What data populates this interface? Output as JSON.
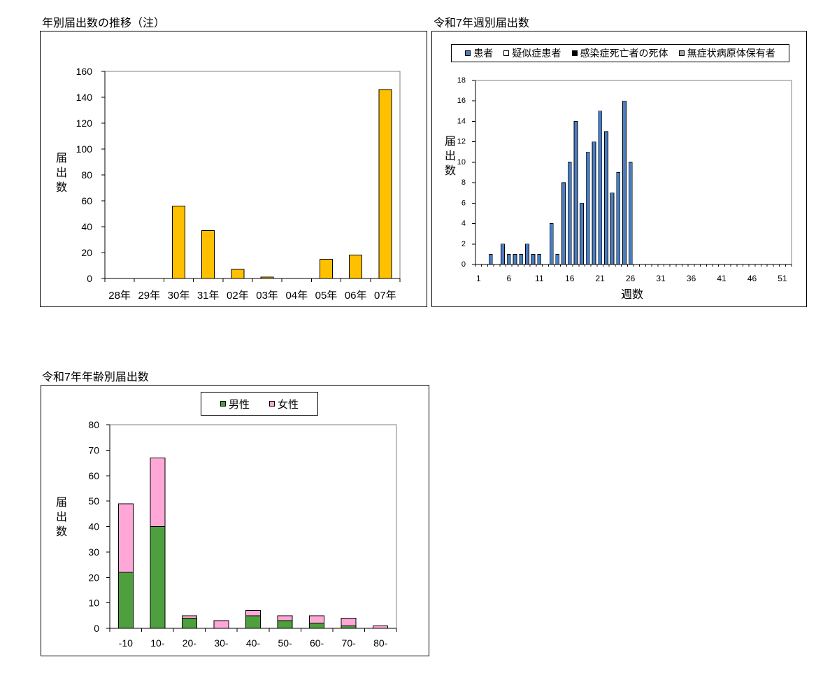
{
  "chart_data": [
    {
      "type": "bar",
      "title": "年別届出数の推移（注）",
      "ylabel": "届出数",
      "categories": [
        "28年",
        "29年",
        "30年",
        "31年",
        "02年",
        "03年",
        "04年",
        "05年",
        "06年",
        "07年"
      ],
      "values": [
        0,
        0,
        56,
        37,
        7,
        1,
        0,
        15,
        18,
        146
      ],
      "ylim": [
        0,
        160
      ],
      "yticks": [
        0,
        20,
        40,
        60,
        80,
        100,
        120,
        140,
        160
      ],
      "bar_color": "#FFC000",
      "grid": false,
      "legend": "none"
    },
    {
      "type": "bar",
      "stacked": true,
      "title": "令和7年週別届出数",
      "xlabel": "週数",
      "ylabel": "届出数",
      "x": [
        1,
        2,
        3,
        4,
        5,
        6,
        7,
        8,
        9,
        10,
        11,
        12,
        13,
        14,
        15,
        16,
        17,
        18,
        19,
        20,
        21,
        22,
        23,
        24,
        25,
        26,
        27,
        28,
        29,
        30,
        31,
        32,
        33,
        34,
        35,
        36,
        37,
        38,
        39,
        40,
        41,
        42,
        43,
        44,
        45,
        46,
        47,
        48,
        49,
        50,
        51,
        52
      ],
      "xticks": [
        1,
        6,
        11,
        16,
        21,
        26,
        31,
        36,
        41,
        46,
        51
      ],
      "ylim": [
        0,
        18
      ],
      "yticks": [
        0,
        2,
        4,
        6,
        8,
        10,
        12,
        14,
        16,
        18
      ],
      "grid": false,
      "legend": "top",
      "series": [
        {
          "name": "患者",
          "color": "#4A7DC0",
          "values": [
            0,
            0,
            1,
            0,
            2,
            1,
            1,
            1,
            2,
            1,
            1,
            0,
            4,
            1,
            8,
            10,
            14,
            6,
            11,
            12,
            15,
            13,
            7,
            9,
            16,
            10,
            0,
            0,
            0,
            0,
            0,
            0,
            0,
            0,
            0,
            0,
            0,
            0,
            0,
            0,
            0,
            0,
            0,
            0,
            0,
            0,
            0,
            0,
            0,
            0,
            0,
            0
          ]
        },
        {
          "name": "疑似症患者",
          "color": "#FFFFFF",
          "values": [
            0,
            0,
            0,
            0,
            0,
            0,
            0,
            0,
            0,
            0,
            0,
            0,
            0,
            0,
            0,
            0,
            0,
            0,
            0,
            0,
            0,
            0,
            0,
            0,
            0,
            0,
            0,
            0,
            0,
            0,
            0,
            0,
            0,
            0,
            0,
            0,
            0,
            0,
            0,
            0,
            0,
            0,
            0,
            0,
            0,
            0,
            0,
            0,
            0,
            0,
            0,
            0
          ]
        },
        {
          "name": "感染症死亡者の死体",
          "color": "#000000",
          "values": [
            0,
            0,
            0,
            0,
            0,
            0,
            0,
            0,
            0,
            0,
            0,
            0,
            0,
            0,
            0,
            0,
            0,
            0,
            0,
            0,
            0,
            0,
            0,
            0,
            0,
            0,
            0,
            0,
            0,
            0,
            0,
            0,
            0,
            0,
            0,
            0,
            0,
            0,
            0,
            0,
            0,
            0,
            0,
            0,
            0,
            0,
            0,
            0,
            0,
            0,
            0,
            0
          ]
        },
        {
          "name": "無症状病原体保有者",
          "color": "#A6A6A6",
          "values": [
            0,
            0,
            0,
            0,
            0,
            0,
            0,
            0,
            0,
            0,
            0,
            0,
            0,
            0,
            0,
            0,
            0,
            0,
            0,
            0,
            0,
            0,
            0,
            0,
            0,
            0,
            0,
            0,
            0,
            0,
            0,
            0,
            0,
            0,
            0,
            0,
            0,
            0,
            0,
            0,
            0,
            0,
            0,
            0,
            0,
            0,
            0,
            0,
            0,
            0,
            0,
            0
          ]
        }
      ]
    },
    {
      "type": "bar",
      "stacked": true,
      "title": "令和7年年齢別届出数",
      "ylabel": "届出数",
      "categories": [
        "-10",
        "10-",
        "20-",
        "30-",
        "40-",
        "50-",
        "60-",
        "70-",
        "80-"
      ],
      "ylim": [
        0,
        80
      ],
      "yticks": [
        0,
        10,
        20,
        30,
        40,
        50,
        60,
        70,
        80
      ],
      "grid": false,
      "legend": "top",
      "series": [
        {
          "name": "男性",
          "color": "#4E9F3D",
          "values": [
            22,
            40,
            4,
            0,
            5,
            3,
            2,
            1,
            0
          ]
        },
        {
          "name": "女性",
          "color": "#FFA7D6",
          "values": [
            27,
            27,
            1,
            3,
            2,
            2,
            3,
            3,
            1
          ]
        }
      ]
    }
  ]
}
